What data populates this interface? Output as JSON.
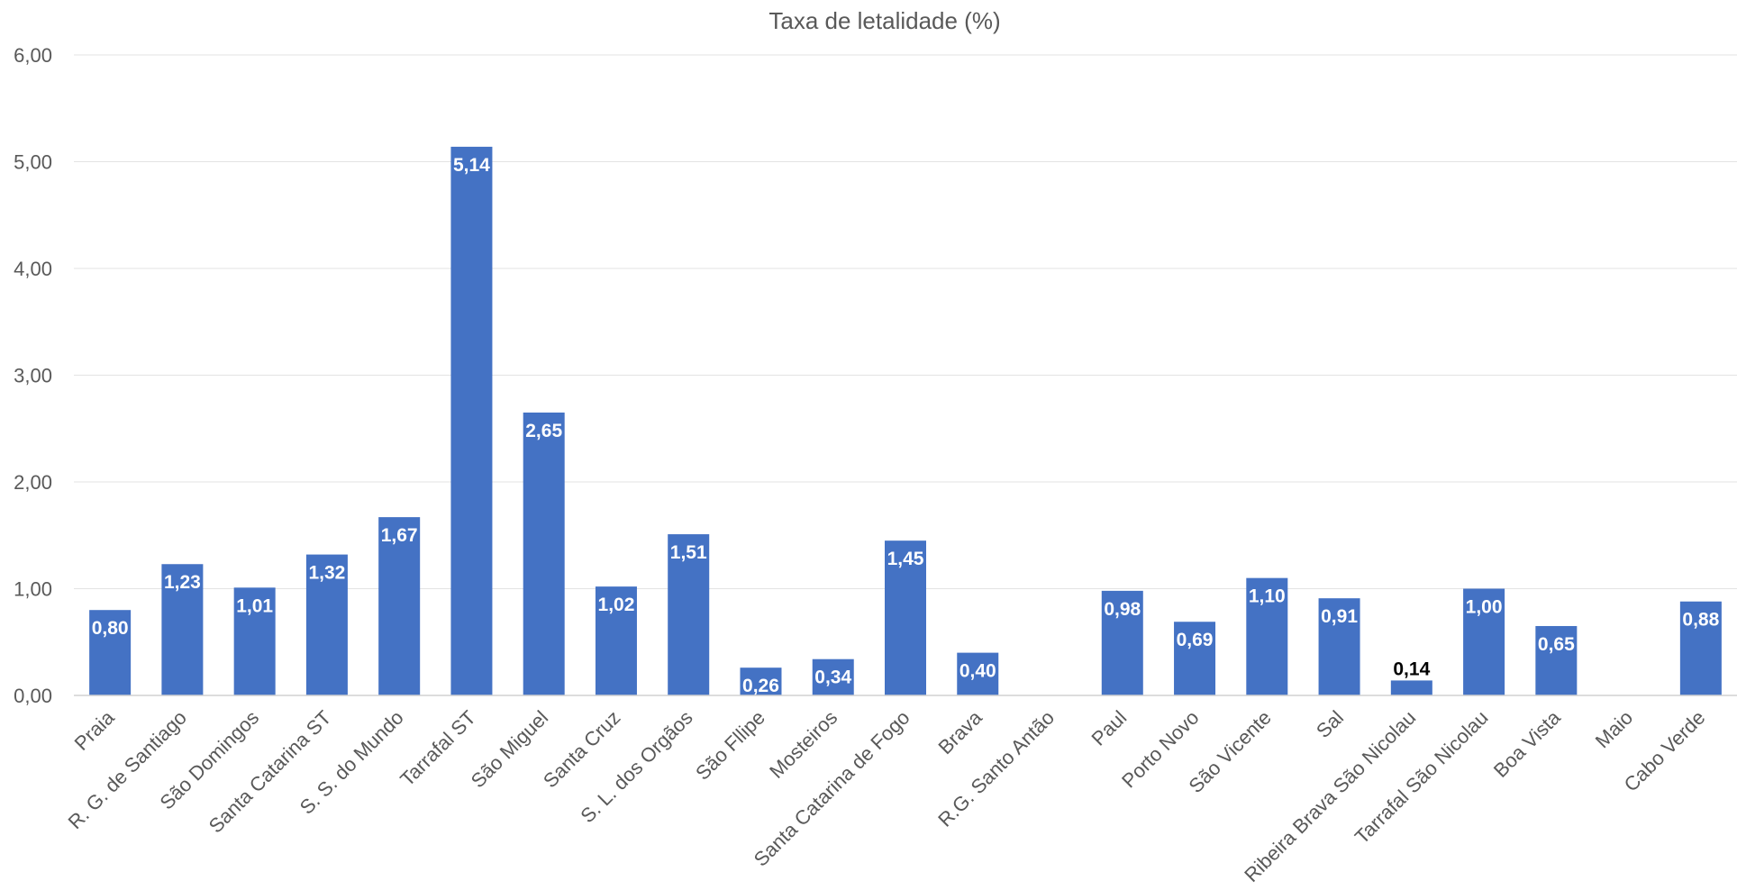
{
  "chart_data": {
    "type": "bar",
    "title": "Taxa de letalidade (%)",
    "xlabel": "",
    "ylabel": "",
    "ylim": [
      0,
      6
    ],
    "yticks": [
      "0,00",
      "1,00",
      "2,00",
      "3,00",
      "4,00",
      "5,00",
      "6,00"
    ],
    "grid": true,
    "legend": "none",
    "bar_color": "#4472C4",
    "label_color_inside": "#FFFFFF",
    "label_color_outside": "#000000",
    "categories": [
      "Praia",
      "R. G. de Santiago",
      "São Domingos",
      "Santa Catarina ST",
      "S. S. do Mundo",
      "Tarrafal ST",
      "São Miguel",
      "Santa Cruz",
      "S. L. dos Orgãos",
      "São Fllipe",
      "Mosteiros",
      "Santa Catarina de Fogo",
      "Brava",
      "R.G. Santo Antão",
      "Paul",
      "Porto Novo",
      "São Vicente",
      "Sal",
      "Ribeira Brava São Nicolau",
      "Tarrafal São Nicolau",
      "Boa Vista",
      "Maio",
      "Cabo Verde"
    ],
    "values": [
      0.8,
      1.23,
      1.01,
      1.32,
      1.67,
      5.14,
      2.65,
      1.02,
      1.51,
      0.26,
      0.34,
      1.45,
      0.4,
      null,
      0.98,
      0.69,
      1.1,
      0.91,
      0.14,
      1.0,
      0.65,
      null,
      0.88
    ],
    "data_labels": [
      "0,80",
      "1,23",
      "1,01",
      "1,32",
      "1,67",
      "5,14",
      "2,65",
      "1,02",
      "1,51",
      "0,26",
      "0,34",
      "1,45",
      "0,40",
      "",
      "0,98",
      "0,69",
      "1,10",
      "0,91",
      "0,14",
      "1,00",
      "0,65",
      "",
      "0,88"
    ]
  }
}
